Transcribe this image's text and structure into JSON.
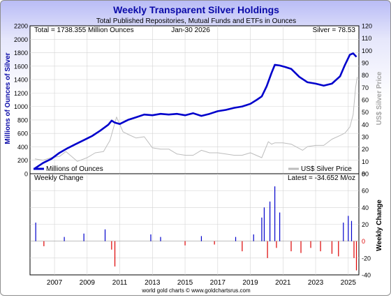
{
  "chart_data": [
    {
      "type": "line",
      "title": "Weekly Transparent Silver Holdings",
      "subtitle": "Total Published Repositories, Mutual Funds and ETFs in Ounces",
      "ylabel": "Millions of Ounces of Silver",
      "ylabel_right": "US$ Silver Price",
      "annotation_left": "Total = 1738.355 Million Ounces",
      "annotation_center": "Jan-30  2026",
      "annotation_right": "Silver = 78.53",
      "ylim": [
        0,
        2200
      ],
      "ylim_right": [
        0,
        120
      ],
      "y_ticks": [
        "0",
        "200",
        "400",
        "600",
        "800",
        "1000",
        "1200",
        "1400",
        "1600",
        "1800",
        "2000",
        "2200"
      ],
      "y_ticks_right": [
        "0",
        "10",
        "20",
        "30",
        "40",
        "50",
        "60",
        "70",
        "80",
        "90",
        "100",
        "110",
        "120"
      ],
      "grid": true,
      "legend_placement": "bottom",
      "series": [
        {
          "name": "Millions of Ounces",
          "axis": "left",
          "color": "#0000cc",
          "x": [
            2006.3,
            2006.8,
            2007.3,
            2007.8,
            2008.3,
            2008.8,
            2009.3,
            2009.8,
            2010.3,
            2010.8,
            2011.0,
            2011.2,
            2011.5,
            2012.0,
            2012.5,
            2013.0,
            2013.5,
            2014.0,
            2014.5,
            2015.0,
            2015.5,
            2016.0,
            2016.5,
            2017.0,
            2017.5,
            2018.0,
            2018.5,
            2019.0,
            2019.5,
            2019.9,
            2020.2,
            2020.5,
            2020.8,
            2021.0,
            2021.3,
            2021.6,
            2022.0,
            2022.5,
            2023.0,
            2023.5,
            2024.0,
            2024.5,
            2025.0,
            2025.3,
            2025.6,
            2025.8,
            2026.0
          ],
          "y": [
            80,
            160,
            220,
            310,
            380,
            440,
            500,
            560,
            640,
            730,
            790,
            760,
            740,
            800,
            840,
            880,
            870,
            890,
            880,
            890,
            870,
            900,
            860,
            890,
            930,
            950,
            980,
            1000,
            1040,
            1100,
            1150,
            1300,
            1500,
            1620,
            1610,
            1590,
            1560,
            1440,
            1360,
            1340,
            1310,
            1340,
            1450,
            1620,
            1770,
            1790,
            1738
          ]
        },
        {
          "name": "US$ Silver Price",
          "axis": "right",
          "color": "#bdbdbd",
          "x": [
            2006.3,
            2006.8,
            2007.3,
            2007.8,
            2008.2,
            2008.9,
            2009.5,
            2010.0,
            2010.5,
            2010.9,
            2011.3,
            2011.7,
            2012.0,
            2012.5,
            2013.0,
            2013.5,
            2014.0,
            2014.5,
            2015.0,
            2015.5,
            2016.0,
            2016.5,
            2017.0,
            2017.5,
            2018.0,
            2018.5,
            2019.0,
            2019.5,
            2020.2,
            2020.6,
            2020.8,
            2021.0,
            2021.5,
            2022.0,
            2022.7,
            2023.0,
            2023.5,
            2024.0,
            2024.5,
            2025.0,
            2025.3,
            2025.6,
            2025.8,
            2025.95,
            2026.05
          ],
          "y": [
            12,
            11,
            13,
            14,
            18,
            10,
            13,
            17,
            18,
            27,
            46,
            34,
            32,
            29,
            30,
            21,
            20,
            20,
            16,
            15,
            15,
            19,
            17,
            17,
            16,
            15,
            15,
            17,
            13,
            26,
            24,
            25,
            25,
            24,
            19,
            22,
            23,
            23,
            28,
            31,
            33,
            38,
            48,
            70,
            78.53
          ]
        }
      ]
    },
    {
      "type": "bar",
      "title": "Weekly Change",
      "ylabel": "Weekly Change",
      "annotation_right": "Latest = -34.652 M/oz",
      "ylim": [
        -40,
        80
      ],
      "y_ticks_right": [
        "-40",
        "-20",
        "0",
        "20",
        "40",
        "60",
        "80"
      ],
      "x_ticks": [
        "2007",
        "2009",
        "2011",
        "2013",
        "2015",
        "2017",
        "2019",
        "2021",
        "2023",
        "2025"
      ],
      "grid": true,
      "colors": {
        "positive": "#0000cc",
        "negative": "#dd0000"
      },
      "x": [
        2006.35,
        2006.85,
        2008.1,
        2009.3,
        2010.6,
        2011.0,
        2011.2,
        2013.4,
        2014.0,
        2015.5,
        2016.5,
        2017.3,
        2018.6,
        2019.0,
        2019.7,
        2020.2,
        2020.35,
        2020.55,
        2020.7,
        2021.0,
        2021.1,
        2021.3,
        2022.0,
        2022.6,
        2023.2,
        2023.8,
        2024.5,
        2024.9,
        2025.2,
        2025.5,
        2025.7,
        2025.85,
        2026.0
      ],
      "values": [
        22,
        -6,
        5,
        9,
        14,
        -10,
        -30,
        8,
        5,
        -5,
        6,
        -4,
        5,
        -12,
        8,
        28,
        40,
        -20,
        47,
        65,
        -8,
        34,
        -12,
        -14,
        -8,
        -12,
        -15,
        -18,
        22,
        30,
        24,
        -20,
        -34.652
      ],
      "footer": "world gold charts © www.goldchartsrus.com"
    }
  ]
}
